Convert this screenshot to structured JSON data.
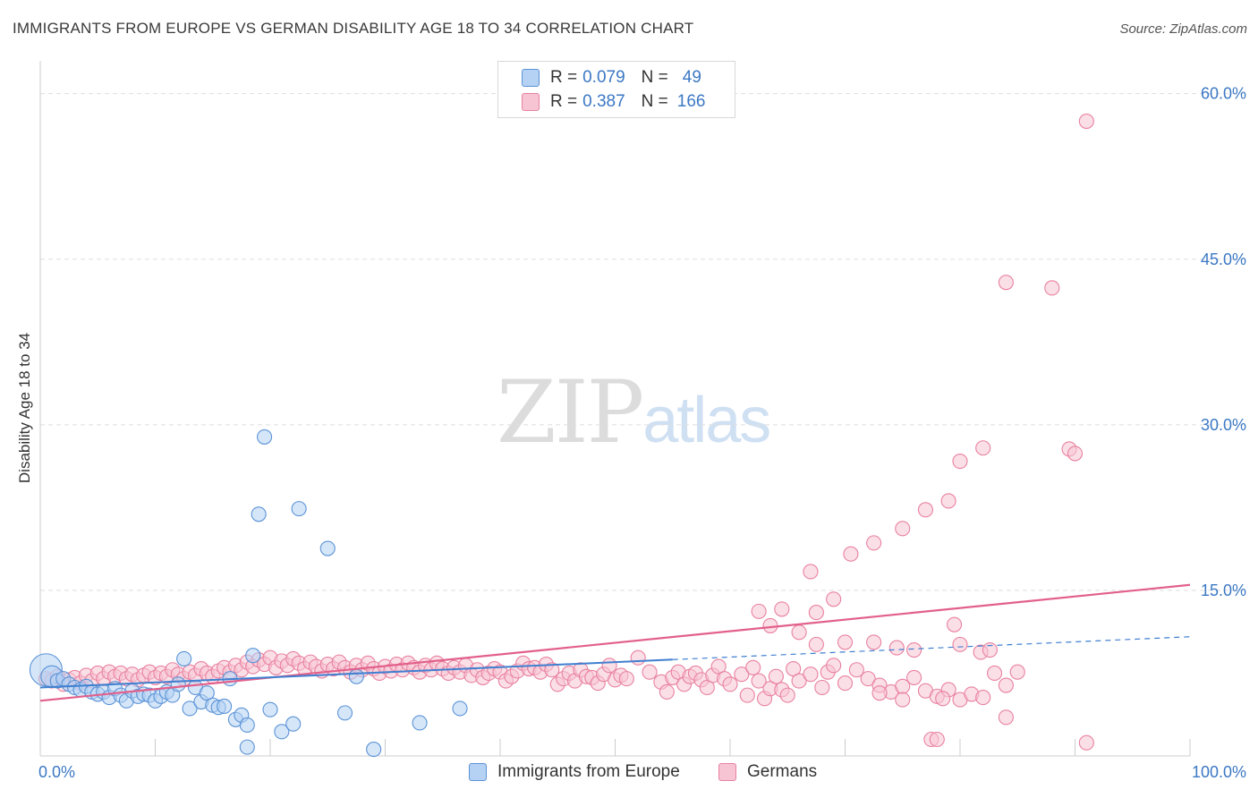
{
  "title": "IMMIGRANTS FROM EUROPE VS GERMAN DISABILITY AGE 18 TO 34 CORRELATION CHART",
  "source": "Source: ZipAtlas.com",
  "watermark": {
    "zip": "ZIP",
    "atlas": "atlas"
  },
  "legend": {
    "r_label": "R =",
    "n_label": "N =",
    "entries": [
      {
        "r": "0.079",
        "n": "49"
      },
      {
        "r": "0.387",
        "n": "166"
      }
    ]
  },
  "colors": {
    "blue_fill": "#b5d1f4",
    "blue_stroke": "#5b93d6",
    "blue_line": "#3f7fd0",
    "pink_fill": "#f7c4d4",
    "pink_stroke": "#e8819f",
    "pink_line": "#e2608b",
    "tick_text": "#3b78c4",
    "grid": "#dedede"
  },
  "chart_data": {
    "type": "scatter",
    "title": "IMMIGRANTS FROM EUROPE VS GERMAN DISABILITY AGE 18 TO 34 CORRELATION CHART",
    "xlabel": "",
    "ylabel": "Disability Age 18 to 34",
    "xlim": [
      0,
      100
    ],
    "ylim": [
      0,
      62
    ],
    "x_tick_labels": [
      "0.0%",
      "100.0%"
    ],
    "y_ticks": [
      15,
      30,
      45,
      60
    ],
    "y_tick_labels": [
      "15.0%",
      "30.0%",
      "45.0%",
      "60.0%"
    ],
    "grid": true,
    "legend_position": "bottom-center",
    "series": [
      {
        "name": "Immigrants from Europe",
        "color": "blue",
        "r": 0.079,
        "n": 49,
        "trend": {
          "x": [
            0,
            100
          ],
          "y": [
            6.2,
            10.8
          ],
          "x_solid_end": 55,
          "style": "solid-then-dashed"
        },
        "points": [
          [
            0.5,
            7.8,
            3
          ],
          [
            1.0,
            7.2,
            2
          ],
          [
            1.5,
            6.8,
            1
          ],
          [
            2.0,
            7.0,
            1
          ],
          [
            2.5,
            6.5,
            1
          ],
          [
            3.0,
            6.2,
            1
          ],
          [
            3.5,
            6.0,
            1
          ],
          [
            4.0,
            6.3,
            1
          ],
          [
            4.5,
            5.8,
            1
          ],
          [
            5.0,
            5.6,
            1
          ],
          [
            5.5,
            5.8,
            1
          ],
          [
            6.0,
            5.3,
            1
          ],
          [
            6.5,
            6.1,
            1
          ],
          [
            7.0,
            5.5,
            1
          ],
          [
            7.5,
            5.0,
            1
          ],
          [
            8.0,
            5.9,
            1
          ],
          [
            8.5,
            5.4,
            1
          ],
          [
            9.0,
            5.6,
            1
          ],
          [
            9.5,
            5.5,
            1
          ],
          [
            10.0,
            5.0,
            1
          ],
          [
            10.5,
            5.4,
            1
          ],
          [
            11.0,
            5.8,
            1
          ],
          [
            11.5,
            5.5,
            1
          ],
          [
            12.0,
            6.5,
            1
          ],
          [
            12.5,
            8.8,
            1
          ],
          [
            13.0,
            4.3,
            1
          ],
          [
            13.5,
            6.2,
            1
          ],
          [
            14.0,
            4.9,
            1
          ],
          [
            14.5,
            5.7,
            1
          ],
          [
            15.0,
            4.6,
            1
          ],
          [
            15.5,
            4.4,
            1
          ],
          [
            16.0,
            4.5,
            1
          ],
          [
            16.5,
            7.0,
            1
          ],
          [
            17.0,
            3.3,
            1
          ],
          [
            17.5,
            3.7,
            1
          ],
          [
            18.0,
            2.8,
            1
          ],
          [
            18.0,
            0.8,
            1
          ],
          [
            18.5,
            9.1,
            1
          ],
          [
            19.0,
            21.9,
            1
          ],
          [
            19.5,
            28.9,
            1
          ],
          [
            20.0,
            4.2,
            1
          ],
          [
            21.0,
            2.2,
            1
          ],
          [
            22.0,
            2.9,
            1
          ],
          [
            22.5,
            22.4,
            1
          ],
          [
            25.0,
            18.8,
            1
          ],
          [
            26.5,
            3.9,
            1
          ],
          [
            27.5,
            7.2,
            1
          ],
          [
            29.0,
            0.6,
            1
          ],
          [
            33.0,
            3.0,
            1
          ],
          [
            36.5,
            4.3,
            1
          ]
        ]
      },
      {
        "name": "Germans",
        "color": "pink",
        "r": 0.387,
        "n": 166,
        "trend": {
          "x": [
            0,
            100
          ],
          "y": [
            5.0,
            15.5
          ],
          "style": "solid"
        },
        "points": [
          [
            0.5,
            7.0,
            1
          ],
          [
            1.0,
            6.8,
            1
          ],
          [
            1.5,
            7.2,
            1
          ],
          [
            2.0,
            6.5,
            1
          ],
          [
            2.5,
            6.9,
            1
          ],
          [
            3.0,
            7.1,
            1
          ],
          [
            3.5,
            6.6,
            1
          ],
          [
            4.0,
            7.3,
            1
          ],
          [
            4.5,
            6.8,
            1
          ],
          [
            5.0,
            7.5,
            1
          ],
          [
            5.5,
            7.0,
            1
          ],
          [
            6.0,
            7.6,
            1
          ],
          [
            6.5,
            7.2,
            1
          ],
          [
            7.0,
            7.5,
            1
          ],
          [
            7.5,
            7.0,
            1
          ],
          [
            8.0,
            7.4,
            1
          ],
          [
            8.5,
            6.9,
            1
          ],
          [
            9.0,
            7.3,
            1
          ],
          [
            9.5,
            7.6,
            1
          ],
          [
            10.0,
            7.1,
            1
          ],
          [
            10.5,
            7.5,
            1
          ],
          [
            11.0,
            7.2,
            1
          ],
          [
            11.5,
            7.8,
            1
          ],
          [
            12.0,
            7.4,
            1
          ],
          [
            12.5,
            7.0,
            1
          ],
          [
            13.0,
            7.6,
            1
          ],
          [
            13.5,
            7.3,
            1
          ],
          [
            14.0,
            7.9,
            1
          ],
          [
            14.5,
            7.5,
            1
          ],
          [
            15.0,
            7.2,
            1
          ],
          [
            15.5,
            7.7,
            1
          ],
          [
            16.0,
            8.0,
            1
          ],
          [
            16.5,
            7.6,
            1
          ],
          [
            17.0,
            8.2,
            1
          ],
          [
            17.5,
            7.8,
            1
          ],
          [
            18.0,
            8.5,
            1
          ],
          [
            18.5,
            8.1,
            1
          ],
          [
            19.0,
            8.7,
            1
          ],
          [
            19.5,
            8.3,
            1
          ],
          [
            20.0,
            8.9,
            1
          ],
          [
            20.5,
            8.0,
            1
          ],
          [
            21.0,
            8.6,
            1
          ],
          [
            21.5,
            8.2,
            1
          ],
          [
            22.0,
            8.8,
            1
          ],
          [
            22.5,
            8.4,
            1
          ],
          [
            23.0,
            7.9,
            1
          ],
          [
            23.5,
            8.5,
            1
          ],
          [
            24.0,
            8.1,
            1
          ],
          [
            24.5,
            7.7,
            1
          ],
          [
            25.0,
            8.3,
            1
          ],
          [
            25.5,
            7.9,
            1
          ],
          [
            26.0,
            8.5,
            1
          ],
          [
            26.5,
            8.0,
            1
          ],
          [
            27.0,
            7.6,
            1
          ],
          [
            27.5,
            8.2,
            1
          ],
          [
            28.0,
            7.8,
            1
          ],
          [
            28.5,
            8.4,
            1
          ],
          [
            29.0,
            7.9,
            1
          ],
          [
            29.5,
            7.5,
            1
          ],
          [
            30.0,
            8.1,
            1
          ],
          [
            30.5,
            7.7,
            1
          ],
          [
            31.0,
            8.3,
            1
          ],
          [
            31.5,
            7.8,
            1
          ],
          [
            32.0,
            8.4,
            1
          ],
          [
            32.5,
            8.0,
            1
          ],
          [
            33.0,
            7.6,
            1
          ],
          [
            33.5,
            8.2,
            1
          ],
          [
            34.0,
            7.8,
            1
          ],
          [
            34.5,
            8.4,
            1
          ],
          [
            35.0,
            7.9,
            1
          ],
          [
            35.5,
            7.5,
            1
          ],
          [
            36.0,
            8.0,
            1
          ],
          [
            36.5,
            7.6,
            1
          ],
          [
            37.0,
            8.2,
            1
          ],
          [
            37.5,
            7.3,
            1
          ],
          [
            38.0,
            7.8,
            1
          ],
          [
            38.5,
            7.1,
            1
          ],
          [
            39.0,
            7.5,
            1
          ],
          [
            39.5,
            7.9,
            1
          ],
          [
            40.0,
            7.6,
            1
          ],
          [
            40.5,
            6.8,
            1
          ],
          [
            41.0,
            7.2,
            1
          ],
          [
            41.5,
            7.7,
            1
          ],
          [
            42.0,
            8.4,
            1
          ],
          [
            42.5,
            7.9,
            1
          ],
          [
            43.0,
            8.0,
            1
          ],
          [
            43.5,
            7.6,
            1
          ],
          [
            44.0,
            8.3,
            1
          ],
          [
            44.5,
            7.8,
            1
          ],
          [
            45.0,
            6.5,
            1
          ],
          [
            45.5,
            7.0,
            1
          ],
          [
            46.0,
            7.5,
            1
          ],
          [
            46.5,
            6.8,
            1
          ],
          [
            47.0,
            7.8,
            1
          ],
          [
            47.5,
            7.2,
            1
          ],
          [
            48.0,
            7.1,
            1
          ],
          [
            48.5,
            6.6,
            1
          ],
          [
            49.0,
            7.4,
            1
          ],
          [
            49.5,
            8.2,
            1
          ],
          [
            50.0,
            6.9,
            1
          ],
          [
            50.5,
            7.3,
            1
          ],
          [
            51.0,
            7.0,
            1
          ],
          [
            52.0,
            8.9,
            1
          ],
          [
            53.0,
            7.6,
            1
          ],
          [
            54.0,
            6.7,
            1
          ],
          [
            54.5,
            5.8,
            1
          ],
          [
            55.0,
            7.1,
            1
          ],
          [
            55.5,
            7.6,
            1
          ],
          [
            56.0,
            6.5,
            1
          ],
          [
            56.5,
            7.2,
            1
          ],
          [
            57.0,
            7.5,
            1
          ],
          [
            57.5,
            6.9,
            1
          ],
          [
            58.0,
            6.2,
            1
          ],
          [
            58.5,
            7.3,
            1
          ],
          [
            59.0,
            8.1,
            1
          ],
          [
            59.5,
            7.0,
            1
          ],
          [
            60.0,
            6.5,
            1
          ],
          [
            61.0,
            7.4,
            1
          ],
          [
            61.5,
            5.5,
            1
          ],
          [
            62.0,
            8.0,
            1
          ],
          [
            62.5,
            6.8,
            1
          ],
          [
            63.0,
            5.2,
            1
          ],
          [
            63.5,
            6.1,
            1
          ],
          [
            64.0,
            7.2,
            1
          ],
          [
            64.5,
            6.0,
            1
          ],
          [
            65.0,
            5.5,
            1
          ],
          [
            65.5,
            7.9,
            1
          ],
          [
            66.0,
            6.8,
            1
          ],
          [
            67.0,
            7.4,
            1
          ],
          [
            68.0,
            6.2,
            1
          ],
          [
            68.5,
            7.6,
            1
          ],
          [
            69.0,
            8.2,
            1
          ],
          [
            70.0,
            6.6,
            1
          ],
          [
            71.0,
            7.8,
            1
          ],
          [
            72.0,
            7.0,
            1
          ],
          [
            73.0,
            6.4,
            1
          ],
          [
            74.0,
            5.8,
            1
          ],
          [
            75.0,
            6.3,
            1
          ],
          [
            76.0,
            7.1,
            1
          ],
          [
            77.0,
            5.9,
            1
          ],
          [
            78.0,
            5.4,
            1
          ],
          [
            79.0,
            6.0,
            1
          ],
          [
            80.0,
            5.1,
            1
          ],
          [
            81.0,
            5.6,
            1
          ],
          [
            82.0,
            5.3,
            1
          ],
          [
            83.0,
            7.5,
            1
          ],
          [
            84.0,
            6.4,
            1
          ],
          [
            85.0,
            7.6,
            1
          ],
          [
            81.8,
            9.4,
            1
          ],
          [
            82.6,
            9.6,
            1
          ],
          [
            80.0,
            10.1,
            1
          ],
          [
            79.5,
            11.9,
            1
          ],
          [
            78.5,
            5.2,
            1
          ],
          [
            76.0,
            9.6,
            1
          ],
          [
            74.5,
            9.8,
            1
          ],
          [
            72.5,
            10.3,
            1
          ],
          [
            70.0,
            10.3,
            1
          ],
          [
            67.5,
            10.1,
            1
          ],
          [
            66.0,
            11.2,
            1
          ],
          [
            63.5,
            11.8,
            1
          ],
          [
            62.5,
            13.1,
            1
          ],
          [
            64.5,
            13.3,
            1
          ],
          [
            67.5,
            13.0,
            1
          ],
          [
            69.0,
            14.2,
            1
          ],
          [
            67.0,
            16.7,
            1
          ],
          [
            70.5,
            18.3,
            1
          ],
          [
            72.5,
            19.3,
            1
          ],
          [
            75.0,
            20.6,
            1
          ],
          [
            77.0,
            22.3,
            1
          ],
          [
            79.0,
            23.1,
            1
          ],
          [
            80.0,
            26.7,
            1
          ],
          [
            82.0,
            27.9,
            1
          ],
          [
            89.5,
            27.8,
            1
          ],
          [
            90.0,
            27.4,
            1
          ],
          [
            84.0,
            42.9,
            1
          ],
          [
            88.0,
            42.4,
            1
          ],
          [
            91.0,
            57.5,
            1
          ],
          [
            77.5,
            1.5,
            1
          ],
          [
            78.0,
            1.5,
            1
          ],
          [
            91.0,
            1.2,
            1
          ],
          [
            84.0,
            3.5,
            1
          ],
          [
            75.0,
            5.1,
            1
          ],
          [
            73.0,
            5.7,
            1
          ]
        ]
      }
    ]
  },
  "bottom_legend": [
    "Immigrants from Europe",
    "Germans"
  ]
}
